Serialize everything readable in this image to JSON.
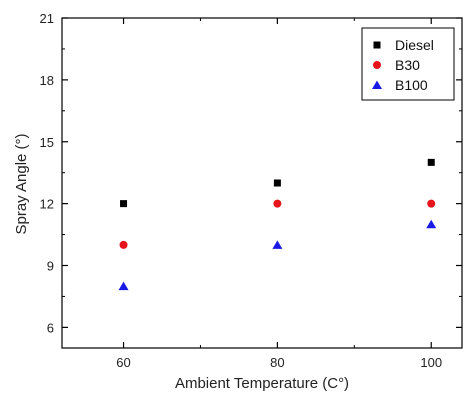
{
  "chart_data": {
    "type": "scatter",
    "title": "",
    "xlabel": "Ambient Temperature (C°)",
    "ylabel": "Spray Angle (°)",
    "x": [
      60,
      80,
      100
    ],
    "xticks": [
      "60",
      "80",
      "100"
    ],
    "yticks": [
      "6",
      "9",
      "12",
      "15",
      "18",
      "21"
    ],
    "xlim": [
      52,
      104
    ],
    "ylim": [
      5,
      21
    ],
    "grid": false,
    "legend_position": "top-right",
    "series": [
      {
        "name": "Diesel",
        "marker": "square",
        "color": "#000000",
        "values": [
          12,
          13,
          14
        ]
      },
      {
        "name": "B30",
        "marker": "circle",
        "color": "#e8141b",
        "values": [
          10,
          12,
          12
        ]
      },
      {
        "name": "B100",
        "marker": "triangle",
        "color": "#1a1ae6",
        "values": [
          8,
          10,
          11
        ]
      }
    ]
  }
}
